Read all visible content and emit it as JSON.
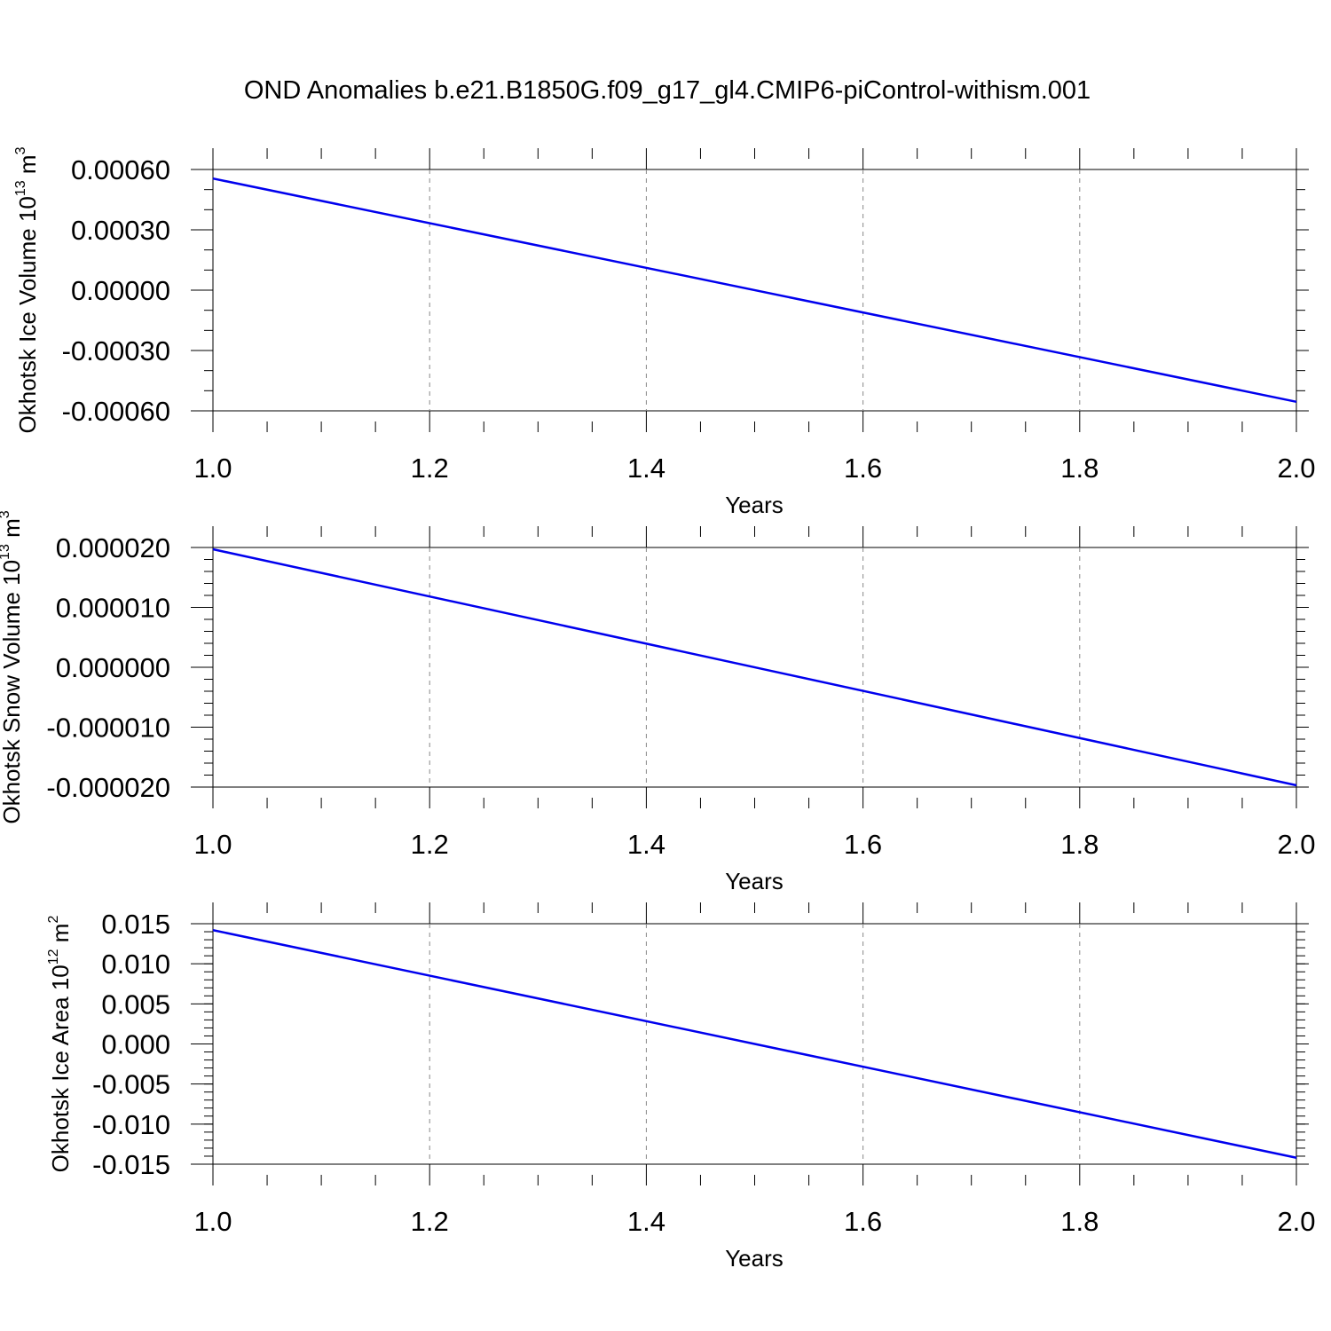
{
  "title": "OND Anomalies b.e21.B1850G.f09_g17_gl4.CMIP6-piControl-withism.001",
  "colors": {
    "line": "#0000ee",
    "axis": "#000000",
    "grid": "#888888"
  },
  "chart_data": [
    {
      "type": "line",
      "xlabel": "Years",
      "ylabel": "Okhotsk Ice Volume 10",
      "ylabel_exp": "13",
      "ylabel_unit": " m",
      "ylabel_unit_exp": "3",
      "xlim": [
        1.0,
        2.0
      ],
      "ylim": [
        -0.0006,
        0.0006
      ],
      "x_ticks": [
        "1.0",
        "1.2",
        "1.4",
        "1.6",
        "1.8",
        "2.0"
      ],
      "y_ticks": [
        "0.00060",
        "0.00030",
        "0.00000",
        "-0.00030",
        "-0.00060"
      ],
      "y_tick_values": [
        0.0006,
        0.0003,
        0.0,
        -0.0003,
        -0.0006
      ],
      "y_minor_step": 0.0001,
      "grid": "x-dashed",
      "series": [
        {
          "x": [
            1.0,
            2.0
          ],
          "y": [
            0.000555,
            -0.000555
          ]
        }
      ]
    },
    {
      "type": "line",
      "xlabel": "Years",
      "ylabel": "Okhotsk Snow Volume 10",
      "ylabel_exp": "13",
      "ylabel_unit": " m",
      "ylabel_unit_exp": "3",
      "xlim": [
        1.0,
        2.0
      ],
      "ylim": [
        -2e-05,
        2e-05
      ],
      "x_ticks": [
        "1.0",
        "1.2",
        "1.4",
        "1.6",
        "1.8",
        "2.0"
      ],
      "y_ticks": [
        "0.000020",
        "0.000010",
        "0.000000",
        "-0.000010",
        "-0.000020"
      ],
      "y_tick_values": [
        2e-05,
        1e-05,
        0.0,
        -1e-05,
        -2e-05
      ],
      "y_minor_step": 2e-06,
      "grid": "x-dashed",
      "series": [
        {
          "x": [
            1.0,
            2.0
          ],
          "y": [
            1.97e-05,
            -1.97e-05
          ]
        }
      ]
    },
    {
      "type": "line",
      "xlabel": "Years",
      "ylabel": "Okhotsk Ice Area 10",
      "ylabel_exp": "12",
      "ylabel_unit": " m",
      "ylabel_unit_exp": "2",
      "xlim": [
        1.0,
        2.0
      ],
      "ylim": [
        -0.015,
        0.015
      ],
      "x_ticks": [
        "1.0",
        "1.2",
        "1.4",
        "1.6",
        "1.8",
        "2.0"
      ],
      "y_ticks": [
        "0.015",
        "0.010",
        "0.005",
        "0.000",
        "-0.005",
        "-0.010",
        "-0.015"
      ],
      "y_tick_values": [
        0.015,
        0.01,
        0.005,
        0.0,
        -0.005,
        -0.01,
        -0.015
      ],
      "y_minor_step": 0.001,
      "grid": "x-dashed",
      "series": [
        {
          "x": [
            1.0,
            2.0
          ],
          "y": [
            0.0142,
            -0.0142
          ]
        }
      ]
    }
  ]
}
